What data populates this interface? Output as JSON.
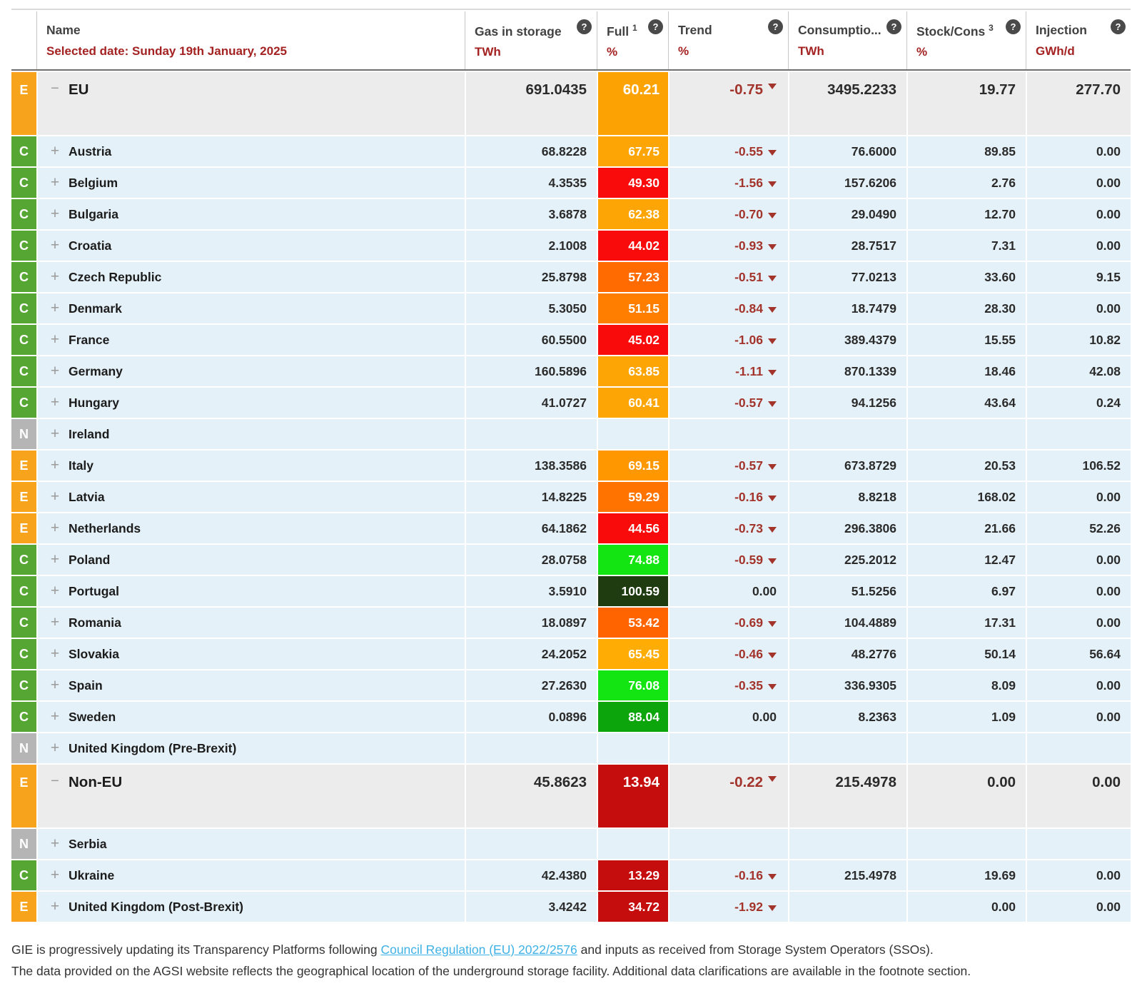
{
  "table": {
    "header": {
      "name_label": "Name",
      "selected_date": "Selected date: Sunday 19th January, 2025",
      "help_icon": "?",
      "columns": [
        {
          "label": "Gas in storage",
          "sup": "",
          "unit": "TWh"
        },
        {
          "label": "Full",
          "sup": "1",
          "unit": "%"
        },
        {
          "label": "Trend",
          "sup": "",
          "unit": "%"
        },
        {
          "label": "Consumptio...",
          "sup": "",
          "unit": "TWh"
        },
        {
          "label": "Stock/Cons",
          "sup": "3",
          "unit": "%"
        },
        {
          "label": "Injection",
          "sup": "",
          "unit": "GWh/d"
        }
      ]
    },
    "badge_colors": {
      "E": "#F8A31C",
      "C": "#56A633",
      "N": "#B5B5B5"
    },
    "rows": [
      {
        "badge": "E",
        "group": true,
        "name": "EU",
        "gas": "691.0435",
        "full": "60.21",
        "full_color": "#FCA203",
        "trend": "-0.75",
        "cons": "3495.2233",
        "stock": "19.77",
        "inj": "277.70"
      },
      {
        "badge": "C",
        "group": false,
        "name": "Austria",
        "gas": "68.8228",
        "full": "67.75",
        "full_color": "#FCA505",
        "trend": "-0.55",
        "cons": "76.6000",
        "stock": "89.85",
        "inj": "0.00"
      },
      {
        "badge": "C",
        "group": false,
        "name": "Belgium",
        "gas": "4.3535",
        "full": "49.30",
        "full_color": "#F90B0B",
        "trend": "-1.56",
        "cons": "157.6206",
        "stock": "2.76",
        "inj": "0.00"
      },
      {
        "badge": "C",
        "group": false,
        "name": "Bulgaria",
        "gas": "3.6878",
        "full": "62.38",
        "full_color": "#FCA505",
        "trend": "-0.70",
        "cons": "29.0490",
        "stock": "12.70",
        "inj": "0.00"
      },
      {
        "badge": "C",
        "group": false,
        "name": "Croatia",
        "gas": "2.1008",
        "full": "44.02",
        "full_color": "#F90B0B",
        "trend": "-0.93",
        "cons": "28.7517",
        "stock": "7.31",
        "inj": "0.00"
      },
      {
        "badge": "C",
        "group": false,
        "name": "Czech Republic",
        "gas": "25.8798",
        "full": "57.23",
        "full_color": "#FF6B00",
        "trend": "-0.51",
        "cons": "77.0213",
        "stock": "33.60",
        "inj": "9.15"
      },
      {
        "badge": "C",
        "group": false,
        "name": "Denmark",
        "gas": "5.3050",
        "full": "51.15",
        "full_color": "#FF7E00",
        "trend": "-0.84",
        "cons": "18.7479",
        "stock": "28.30",
        "inj": "0.00"
      },
      {
        "badge": "C",
        "group": false,
        "name": "France",
        "gas": "60.5500",
        "full": "45.02",
        "full_color": "#F90B0B",
        "trend": "-1.06",
        "cons": "389.4379",
        "stock": "15.55",
        "inj": "10.82"
      },
      {
        "badge": "C",
        "group": false,
        "name": "Germany",
        "gas": "160.5896",
        "full": "63.85",
        "full_color": "#FCA505",
        "trend": "-1.11",
        "cons": "870.1339",
        "stock": "18.46",
        "inj": "42.08"
      },
      {
        "badge": "C",
        "group": false,
        "name": "Hungary",
        "gas": "41.0727",
        "full": "60.41",
        "full_color": "#FCA505",
        "trend": "-0.57",
        "cons": "94.1256",
        "stock": "43.64",
        "inj": "0.24"
      },
      {
        "badge": "N",
        "group": false,
        "name": "Ireland",
        "gas": "",
        "full": "",
        "full_color": "",
        "trend": "",
        "cons": "",
        "stock": "",
        "inj": ""
      },
      {
        "badge": "E",
        "group": false,
        "name": "Italy",
        "gas": "138.3586",
        "full": "69.15",
        "full_color": "#FF9800",
        "trend": "-0.57",
        "cons": "673.8729",
        "stock": "20.53",
        "inj": "106.52"
      },
      {
        "badge": "E",
        "group": false,
        "name": "Latvia",
        "gas": "14.8225",
        "full": "59.29",
        "full_color": "#FF7300",
        "trend": "-0.16",
        "cons": "8.8218",
        "stock": "168.02",
        "inj": "0.00"
      },
      {
        "badge": "E",
        "group": false,
        "name": "Netherlands",
        "gas": "64.1862",
        "full": "44.56",
        "full_color": "#F90B0B",
        "trend": "-0.73",
        "cons": "296.3806",
        "stock": "21.66",
        "inj": "52.26"
      },
      {
        "badge": "C",
        "group": false,
        "name": "Poland",
        "gas": "28.0758",
        "full": "74.88",
        "full_color": "#12E512",
        "trend": "-0.59",
        "cons": "225.2012",
        "stock": "12.47",
        "inj": "0.00"
      },
      {
        "badge": "C",
        "group": false,
        "name": "Portugal",
        "gas": "3.5910",
        "full": "100.59",
        "full_color": "#1E3C10",
        "trend": "0.00",
        "cons": "51.5256",
        "stock": "6.97",
        "inj": "0.00"
      },
      {
        "badge": "C",
        "group": false,
        "name": "Romania",
        "gas": "18.0897",
        "full": "53.42",
        "full_color": "#FF6400",
        "trend": "-0.69",
        "cons": "104.4889",
        "stock": "17.31",
        "inj": "0.00"
      },
      {
        "badge": "C",
        "group": false,
        "name": "Slovakia",
        "gas": "24.2052",
        "full": "65.45",
        "full_color": "#FFAD05",
        "trend": "-0.46",
        "cons": "48.2776",
        "stock": "50.14",
        "inj": "56.64"
      },
      {
        "badge": "C",
        "group": false,
        "name": "Spain",
        "gas": "27.2630",
        "full": "76.08",
        "full_color": "#12E512",
        "trend": "-0.35",
        "cons": "336.9305",
        "stock": "8.09",
        "inj": "0.00"
      },
      {
        "badge": "C",
        "group": false,
        "name": "Sweden",
        "gas": "0.0896",
        "full": "88.04",
        "full_color": "#0CA50C",
        "trend": "0.00",
        "cons": "8.2363",
        "stock": "1.09",
        "inj": "0.00"
      },
      {
        "badge": "N",
        "group": false,
        "name": "United Kingdom (Pre-Brexit)",
        "gas": "",
        "full": "",
        "full_color": "",
        "trend": "",
        "cons": "",
        "stock": "",
        "inj": ""
      },
      {
        "badge": "E",
        "group": true,
        "name": "Non-EU",
        "gas": "45.8623",
        "full": "13.94",
        "full_color": "#C60D0D",
        "trend": "-0.22",
        "cons": "215.4978",
        "stock": "0.00",
        "inj": "0.00"
      },
      {
        "badge": "N",
        "group": false,
        "name": "Serbia",
        "gas": "",
        "full": "",
        "full_color": "",
        "trend": "",
        "cons": "",
        "stock": "",
        "inj": ""
      },
      {
        "badge": "C",
        "group": false,
        "name": "Ukraine",
        "gas": "42.4380",
        "full": "13.29",
        "full_color": "#C60D0D",
        "trend": "-0.16",
        "cons": "215.4978",
        "stock": "19.69",
        "inj": "0.00"
      },
      {
        "badge": "E",
        "group": false,
        "name": "United Kingdom (Post-Brexit)",
        "gas": "3.4242",
        "full": "34.72",
        "full_color": "#C60D0D",
        "trend": "-1.92",
        "cons": "",
        "stock": "0.00",
        "inj": "0.00"
      }
    ]
  },
  "footer": {
    "line1_before": "GIE is progressively updating its Transparency Platforms following ",
    "line1_link": "Council Regulation (EU) 2022/2576",
    "line1_after": " and inputs as received from Storage System Operators (SSOs).",
    "line2": "The data provided on the AGSI website reflects the geographical location of the underground storage facility. Additional data clarifications are available in the footnote section."
  }
}
